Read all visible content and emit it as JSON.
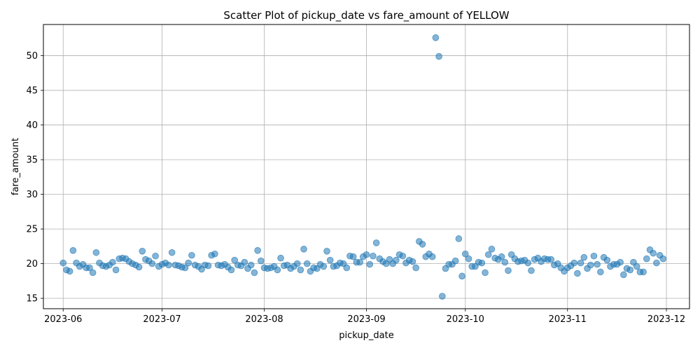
{
  "chart_data": {
    "type": "scatter",
    "title": "Scatter Plot of pickup_date vs fare_amount of YELLOW",
    "xlabel": "pickup_date",
    "ylabel": "fare_amount",
    "xlim": [
      "2023-05-26",
      "2023-12-08"
    ],
    "ylim": [
      13.5,
      54.5
    ],
    "x_ticks": [
      "2023-06-01",
      "2023-07-01",
      "2023-08-01",
      "2023-09-01",
      "2023-10-01",
      "2023-11-01",
      "2023-12-01"
    ],
    "x_tick_labels": [
      "2023-06",
      "2023-07",
      "2023-08",
      "2023-09",
      "2023-10",
      "2023-11",
      "2023-12"
    ],
    "y_ticks": [
      15,
      20,
      25,
      30,
      35,
      40,
      45,
      50
    ],
    "y_tick_labels": [
      "15",
      "20",
      "25",
      "30",
      "35",
      "40",
      "45",
      "50"
    ],
    "grid": true,
    "marker_color": "#1f77b4",
    "series": [
      {
        "x": [
          "2023-06-01",
          "2023-06-02",
          "2023-06-03",
          "2023-06-04",
          "2023-06-05",
          "2023-06-06",
          "2023-06-07",
          "2023-06-08",
          "2023-06-09",
          "2023-06-10",
          "2023-06-11",
          "2023-06-12",
          "2023-06-13",
          "2023-06-14",
          "2023-06-15",
          "2023-06-16",
          "2023-06-17",
          "2023-06-18",
          "2023-06-19",
          "2023-06-20",
          "2023-06-21",
          "2023-06-22",
          "2023-06-23",
          "2023-06-24",
          "2023-06-25",
          "2023-06-26",
          "2023-06-27",
          "2023-06-28",
          "2023-06-29",
          "2023-06-30",
          "2023-07-01",
          "2023-07-02",
          "2023-07-03",
          "2023-07-04",
          "2023-07-05",
          "2023-07-06",
          "2023-07-07",
          "2023-07-08",
          "2023-07-09",
          "2023-07-10",
          "2023-07-11",
          "2023-07-12",
          "2023-07-13",
          "2023-07-14",
          "2023-07-15",
          "2023-07-16",
          "2023-07-17",
          "2023-07-18",
          "2023-07-19",
          "2023-07-20",
          "2023-07-21",
          "2023-07-22",
          "2023-07-23",
          "2023-07-24",
          "2023-07-25",
          "2023-07-26",
          "2023-07-27",
          "2023-07-28",
          "2023-07-29",
          "2023-07-30",
          "2023-07-31",
          "2023-08-01",
          "2023-08-02",
          "2023-08-03",
          "2023-08-04",
          "2023-08-05",
          "2023-08-06",
          "2023-08-07",
          "2023-08-08",
          "2023-08-09",
          "2023-08-10",
          "2023-08-11",
          "2023-08-12",
          "2023-08-13",
          "2023-08-14",
          "2023-08-15",
          "2023-08-16",
          "2023-08-17",
          "2023-08-18",
          "2023-08-19",
          "2023-08-20",
          "2023-08-21",
          "2023-08-22",
          "2023-08-23",
          "2023-08-24",
          "2023-08-25",
          "2023-08-26",
          "2023-08-27",
          "2023-08-28",
          "2023-08-29",
          "2023-08-30",
          "2023-08-31",
          "2023-09-01",
          "2023-09-02",
          "2023-09-03",
          "2023-09-04",
          "2023-09-05",
          "2023-09-06",
          "2023-09-07",
          "2023-09-08",
          "2023-09-09",
          "2023-09-10",
          "2023-09-11",
          "2023-09-12",
          "2023-09-13",
          "2023-09-14",
          "2023-09-15",
          "2023-09-16",
          "2023-09-17",
          "2023-09-18",
          "2023-09-19",
          "2023-09-20",
          "2023-09-21",
          "2023-09-22",
          "2023-09-23",
          "2023-09-24",
          "2023-09-25",
          "2023-09-26",
          "2023-09-27",
          "2023-09-28",
          "2023-09-29",
          "2023-09-30",
          "2023-10-01",
          "2023-10-02",
          "2023-10-03",
          "2023-10-04",
          "2023-10-05",
          "2023-10-06",
          "2023-10-07",
          "2023-10-08",
          "2023-10-09",
          "2023-10-10",
          "2023-10-11",
          "2023-10-12",
          "2023-10-13",
          "2023-10-14",
          "2023-10-15",
          "2023-10-16",
          "2023-10-17",
          "2023-10-18",
          "2023-10-19",
          "2023-10-20",
          "2023-10-21",
          "2023-10-22",
          "2023-10-23",
          "2023-10-24",
          "2023-10-25",
          "2023-10-26",
          "2023-10-27",
          "2023-10-28",
          "2023-10-29",
          "2023-10-30",
          "2023-10-31",
          "2023-11-01",
          "2023-11-02",
          "2023-11-03",
          "2023-11-04",
          "2023-11-05",
          "2023-11-06",
          "2023-11-07",
          "2023-11-08",
          "2023-11-09",
          "2023-11-10",
          "2023-11-11",
          "2023-11-12",
          "2023-11-13",
          "2023-11-14",
          "2023-11-15",
          "2023-11-16",
          "2023-11-17",
          "2023-11-18",
          "2023-11-19",
          "2023-11-20",
          "2023-11-21",
          "2023-11-22",
          "2023-11-23",
          "2023-11-24",
          "2023-11-25",
          "2023-11-26",
          "2023-11-27",
          "2023-11-28",
          "2023-11-29",
          "2023-11-30"
        ],
        "y": [
          20.1,
          19.1,
          18.9,
          21.9,
          20.1,
          19.6,
          19.9,
          19.4,
          19.4,
          18.7,
          21.6,
          20.1,
          19.7,
          19.6,
          19.8,
          20.2,
          19.1,
          20.7,
          20.8,
          20.7,
          20.3,
          20.0,
          19.8,
          19.5,
          21.8,
          20.6,
          20.4,
          20.0,
          21.1,
          19.6,
          19.9,
          20.1,
          19.8,
          21.6,
          19.8,
          19.7,
          19.5,
          19.4,
          20.1,
          21.2,
          19.8,
          19.6,
          19.2,
          19.8,
          19.7,
          21.2,
          21.4,
          19.8,
          19.7,
          19.9,
          19.5,
          19.1,
          20.5,
          19.8,
          19.7,
          20.2,
          19.3,
          19.8,
          18.7,
          21.9,
          20.4,
          19.4,
          19.3,
          19.4,
          19.6,
          19.1,
          20.8,
          19.7,
          19.8,
          19.3,
          19.6,
          20.0,
          19.1,
          22.1,
          20.0,
          18.9,
          19.4,
          19.3,
          19.9,
          19.6,
          21.8,
          20.5,
          19.6,
          19.7,
          20.1,
          20.0,
          19.4,
          21.1,
          21.0,
          20.2,
          20.2,
          21.0,
          21.3,
          19.9,
          21.1,
          23.0,
          20.7,
          20.3,
          20.0,
          20.6,
          20.0,
          20.5,
          21.3,
          21.1,
          20.1,
          20.5,
          20.3,
          19.4,
          23.2,
          22.8,
          21.0,
          21.4,
          21.0,
          52.6,
          49.9,
          15.3,
          19.3,
          19.9,
          19.9,
          20.4,
          23.6,
          18.2,
          21.4,
          20.7,
          19.6,
          19.6,
          20.2,
          20.1,
          18.7,
          21.3,
          22.1,
          20.8,
          20.6,
          21.0,
          20.2,
          19.0,
          21.3,
          20.7,
          20.3,
          20.4,
          20.5,
          20.1,
          19.0,
          20.6,
          20.8,
          20.3,
          20.7,
          20.6,
          20.6,
          19.8,
          20.0,
          19.4,
          18.9,
          19.4,
          19.7,
          20.1,
          18.6,
          20.1,
          20.9,
          19.3,
          19.8,
          21.1,
          19.9,
          18.8,
          20.9,
          20.5,
          19.6,
          19.9,
          19.9,
          20.2,
          18.4,
          19.3,
          19.1,
          20.2,
          19.6,
          18.8,
          18.8,
          20.7,
          22.0,
          21.5,
          20.1,
          21.2,
          20.7
        ]
      }
    ]
  }
}
